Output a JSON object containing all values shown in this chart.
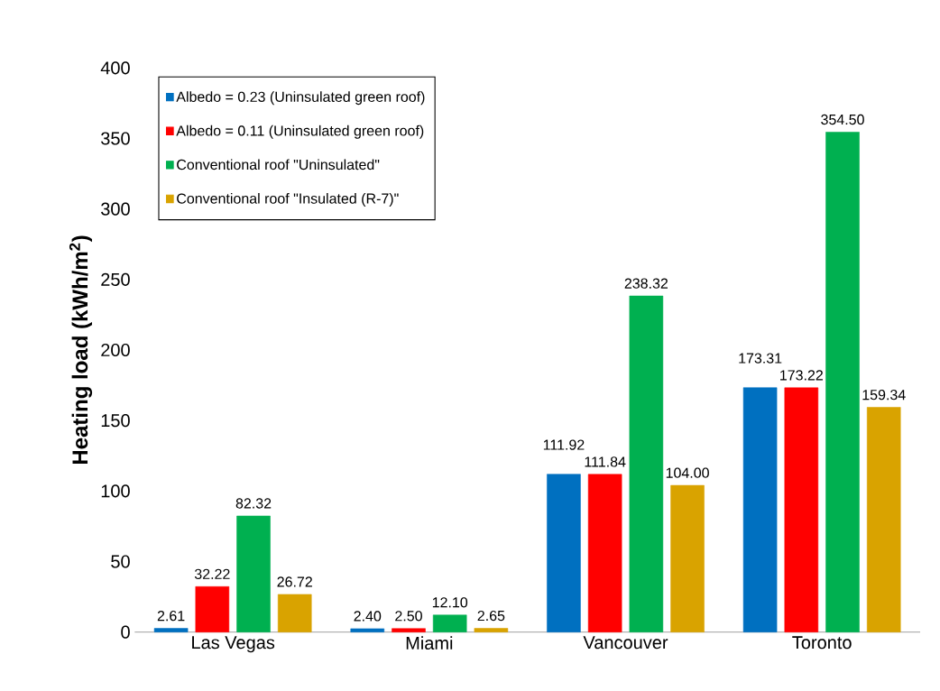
{
  "chart_data": {
    "type": "bar",
    "ylabel": "Heating load (kWh/m$^{2}$)",
    "categories": [
      "Las Vegas",
      "Miami",
      "Vancouver",
      "Toronto"
    ],
    "series": [
      {
        "name": "Albedo = 0.23 (Uninsulated green roof)",
        "color": "#0070c0",
        "values": [
          2.61,
          2.4,
          111.92,
          173.31
        ],
        "value_labels": [
          "2.61",
          "2.40",
          "111.92",
          "173.31"
        ]
      },
      {
        "name": "Albedo = 0.11 (Uninsulated green roof)",
        "color": "#ff0000",
        "values": [
          32.22,
          2.5,
          111.84,
          173.22
        ],
        "value_labels": [
          "32.22",
          "2.50",
          "111.84",
          "173.22"
        ]
      },
      {
        "name": "Conventional roof \"Uninsulated\"",
        "color": "#00b050",
        "values": [
          82.32,
          12.1,
          238.32,
          354.5
        ],
        "value_labels": [
          "82.32",
          "12.10",
          "238.32",
          "354.50"
        ]
      },
      {
        "name": "Conventional roof \"Insulated (R-7)\"",
        "color": "#d9a300",
        "values": [
          26.72,
          2.65,
          104.0,
          159.34
        ],
        "value_labels": [
          "26.72",
          "2.65",
          "104.00",
          "159.34"
        ]
      }
    ],
    "ylim": [
      0,
      400
    ],
    "yticks": [
      0,
      50,
      100,
      150,
      200,
      250,
      300,
      350,
      400
    ],
    "legend": "top left",
    "grid": false
  }
}
